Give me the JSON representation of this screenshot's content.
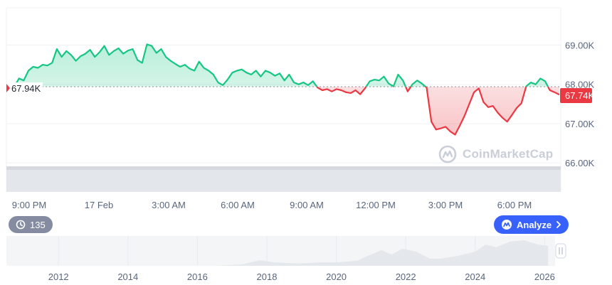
{
  "chart_data": [
    {
      "type": "area",
      "x_ticks": [
        "9:00 PM",
        "17 Feb",
        "3:00 AM",
        "6:00 AM",
        "9:00 AM",
        "12:00 PM",
        "3:00 PM",
        "6:00 PM"
      ],
      "y_ticks": [
        "69.00K",
        "68.00K",
        "67.00K",
        "66.00K"
      ],
      "ylim": [
        65.95,
        69.95
      ],
      "baseline": 67.94,
      "baseline_label": "67.94K",
      "current_value": 67.74,
      "current_label": "67.74K",
      "up_color": "#16c784",
      "down_color": "#ea3943",
      "grid": true,
      "series": [
        {
          "values": [
            67.94,
            68.15,
            68.1,
            68.35,
            68.45,
            68.42,
            68.5,
            68.48,
            68.55,
            68.9,
            68.7,
            68.85,
            68.75,
            68.6,
            68.72,
            68.78,
            68.88,
            68.7,
            68.82,
            68.98,
            68.75,
            68.85,
            68.92,
            68.78,
            68.86,
            68.9,
            68.62,
            68.55,
            69.02,
            68.98,
            68.8,
            68.9,
            68.7,
            68.6,
            68.52,
            68.45,
            68.5,
            68.4,
            68.35,
            68.58,
            68.42,
            68.35,
            68.25,
            68.05,
            67.98,
            68.12,
            68.3,
            68.35,
            68.38,
            68.3,
            68.25,
            68.35,
            68.2,
            68.35,
            68.3,
            68.22,
            68.28,
            68.1,
            68.25,
            68.05,
            68.0,
            68.05,
            67.98,
            68.08,
            67.92,
            67.85,
            67.88,
            67.82,
            67.88,
            67.85,
            67.8,
            67.78,
            67.85,
            67.75,
            67.9,
            68.08,
            68.12,
            68.1,
            68.2,
            68.02,
            67.95,
            68.25,
            68.1,
            67.82,
            68.0,
            68.1,
            68.02,
            67.92,
            67.05,
            66.85,
            66.88,
            66.92,
            66.8,
            66.72,
            66.95,
            67.2,
            67.5,
            67.8,
            67.9,
            67.55,
            67.42,
            67.45,
            67.28,
            67.15,
            67.05,
            67.22,
            67.4,
            67.52,
            67.95,
            68.05,
            68.0,
            68.15,
            68.08,
            67.85,
            67.8,
            67.74
          ]
        }
      ]
    },
    {
      "type": "area",
      "x_ticks": [
        "2012",
        "2014",
        "2016",
        "2018",
        "2020",
        "2022",
        "2024",
        "2026"
      ],
      "x_range": [
        2010.5,
        2026.3
      ],
      "ylim": [
        0,
        1
      ],
      "series": [
        {
          "x": [
            2010.5,
            2013,
            2015,
            2016.5,
            2017.3,
            2017.8,
            2018.2,
            2018.9,
            2019.5,
            2020.0,
            2020.6,
            2021.0,
            2021.3,
            2021.6,
            2021.9,
            2022.3,
            2022.7,
            2023.0,
            2023.5,
            2024.0,
            2024.3,
            2024.6,
            2025.0,
            2025.4,
            2025.8,
            2026.1
          ],
          "values": [
            0.0,
            0.0,
            0.0,
            0.0,
            0.05,
            0.2,
            0.12,
            0.08,
            0.12,
            0.12,
            0.18,
            0.4,
            0.55,
            0.4,
            0.6,
            0.5,
            0.25,
            0.25,
            0.35,
            0.5,
            0.75,
            0.65,
            0.85,
            0.9,
            0.75,
            0.7
          ]
        }
      ]
    }
  ],
  "ui": {
    "history_count": "135",
    "analyze_label": "Analyze",
    "brand_name": "CoinMarketCap"
  }
}
